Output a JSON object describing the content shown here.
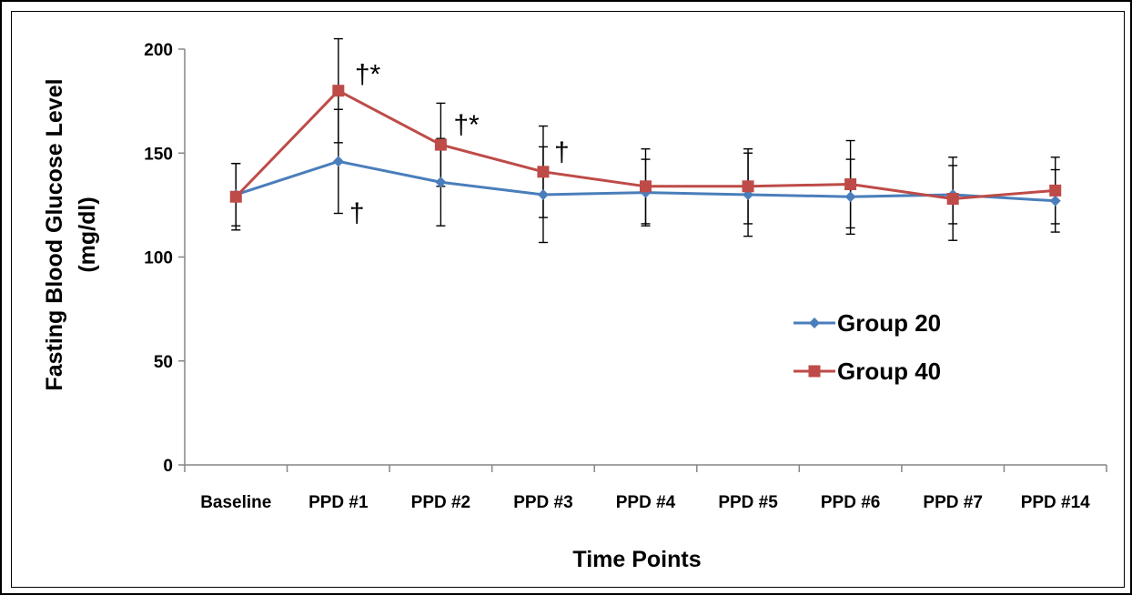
{
  "chart_data": {
    "type": "line",
    "title": "",
    "xlabel": "Time Points",
    "ylabel": [
      "Fasting Blood Glucose Level",
      "(mg/dl)"
    ],
    "ylim": [
      0,
      200
    ],
    "yticks": [
      0,
      50,
      100,
      150,
      200
    ],
    "categories": [
      "Baseline",
      "PPD #1",
      "PPD #2",
      "PPD #3",
      "PPD #4",
      "PPD #5",
      "PPD #6",
      "PPD #7",
      "PPD #14"
    ],
    "grid": false,
    "legend_position": "right-middle",
    "series": [
      {
        "name": "Group 20",
        "color": "#4a7ebb",
        "marker": "diamond",
        "values": [
          130,
          146,
          136,
          130,
          131,
          130,
          129,
          130,
          127
        ],
        "error": [
          15,
          25,
          21,
          23,
          16,
          20,
          18,
          14,
          15
        ]
      },
      {
        "name": "Group 40",
        "color": "#be4b48",
        "marker": "square",
        "values": [
          129,
          180,
          154,
          141,
          134,
          134,
          135,
          128,
          132
        ],
        "error": [
          16,
          25,
          20,
          22,
          18,
          18,
          21,
          20,
          16
        ]
      }
    ],
    "annotations": [
      {
        "text": "†*",
        "category_index": 1,
        "value": 180
      },
      {
        "text": "†*",
        "category_index": 2,
        "value": 154
      },
      {
        "text": "†",
        "category_index": 3,
        "value": 141
      },
      {
        "text": "†",
        "category_index": 1,
        "value": 130
      }
    ]
  }
}
